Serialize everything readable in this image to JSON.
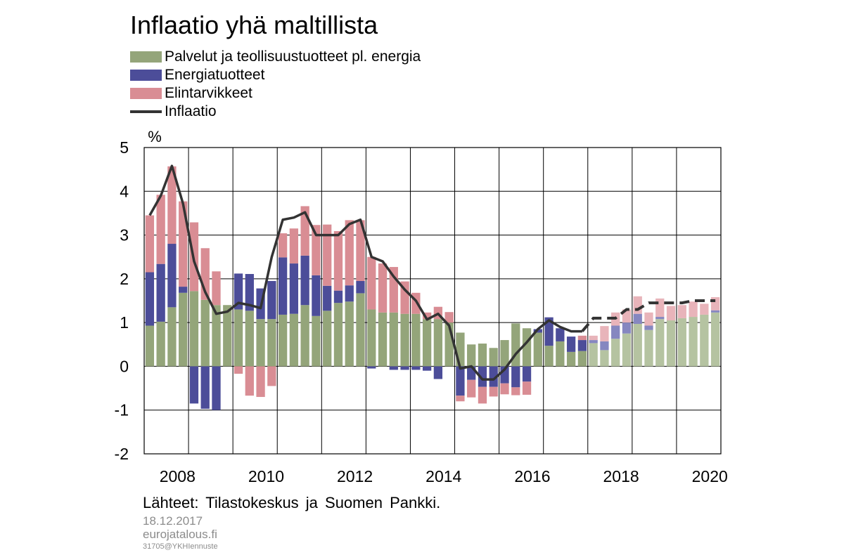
{
  "title": "Inflaatio yhä maltillista",
  "legend": [
    {
      "label": "Palvelut ja teollisuustuotteet pl. energia",
      "color": "#94a57a",
      "kind": "bar"
    },
    {
      "label": "Energiatuotteet",
      "color": "#4c4d99",
      "kind": "bar"
    },
    {
      "label": "Elintarvikkeet",
      "color": "#d98d94",
      "kind": "bar"
    },
    {
      "label": "Inflaatio",
      "color": "#333333",
      "kind": "line"
    }
  ],
  "source": "Lähteet: Tilastokeskus ja Suomen Pankki.",
  "date": "18.12.2017",
  "site": "eurojatalous.fi",
  "code": "31705@YKHIennuste",
  "chart_data": {
    "type": "bar",
    "stacked": true,
    "frequency": "quarterly",
    "x_start": "2007Q4",
    "ylabel": "%",
    "ylim": [
      -2,
      5
    ],
    "yticks": [
      5,
      4,
      3,
      2,
      1,
      0,
      -1,
      -2
    ],
    "xticks": [
      "2008",
      "2010",
      "2012",
      "2014",
      "2016",
      "2018",
      "2020"
    ],
    "grid": true,
    "forecast_start": "2017Q4",
    "colors": {
      "services": "#94a57a",
      "energy": "#4c4d99",
      "food": "#d98d94",
      "line": "#333333"
    },
    "forecast_colors": {
      "services": "#b5c3a1",
      "energy": "#8687c0",
      "food": "#e8b4ba"
    },
    "series": [
      {
        "name": "Palvelut ja teollisuustuotteet pl. energia",
        "key": "services",
        "values": [
          0.93,
          1.02,
          1.35,
          1.68,
          1.72,
          1.52,
          1.4,
          1.4,
          1.3,
          1.27,
          1.08,
          1.08,
          1.18,
          1.2,
          1.4,
          1.15,
          1.27,
          1.45,
          1.48,
          1.67,
          1.3,
          1.23,
          1.23,
          1.2,
          1.2,
          1.08,
          1.08,
          1.0,
          0.77,
          0.5,
          0.52,
          0.42,
          0.6,
          0.98,
          0.87,
          0.77,
          0.47,
          0.57,
          0.33,
          0.35,
          0.53,
          0.37,
          0.63,
          0.75,
          0.97,
          0.83,
          1.08,
          1.05,
          1.1,
          1.13,
          1.18,
          1.23
        ]
      },
      {
        "name": "Energiatuotteet",
        "key": "energy",
        "values": [
          1.22,
          1.32,
          1.45,
          0.14,
          -0.85,
          -0.97,
          -1.0,
          0.0,
          0.82,
          0.84,
          0.7,
          0.87,
          1.31,
          1.15,
          1.13,
          0.93,
          0.57,
          0.28,
          0.37,
          0.28,
          -0.05,
          0.0,
          -0.08,
          -0.08,
          -0.08,
          -0.1,
          -0.29,
          0.0,
          -0.67,
          -0.31,
          -0.47,
          -0.47,
          -0.39,
          -0.48,
          -0.35,
          0.08,
          0.65,
          0.3,
          0.35,
          0.25,
          0.07,
          0.2,
          0.3,
          0.25,
          0.23,
          0.1,
          0.05,
          0.0,
          0.0,
          0.0,
          0.0,
          0.05
        ]
      },
      {
        "name": "Elintarvikkeet",
        "key": "food",
        "values": [
          1.3,
          1.58,
          1.77,
          1.95,
          1.57,
          1.18,
          0.77,
          0.0,
          -0.17,
          -0.67,
          -0.7,
          -0.45,
          0.55,
          0.8,
          1.13,
          1.15,
          1.4,
          1.36,
          1.49,
          1.39,
          1.2,
          1.12,
          1.04,
          0.74,
          0.48,
          0.15,
          0.28,
          0.24,
          -0.13,
          -0.4,
          -0.38,
          -0.22,
          -0.25,
          -0.18,
          -0.3,
          0.0,
          0.0,
          0.0,
          0.0,
          0.1,
          0.1,
          0.35,
          0.3,
          0.3,
          0.4,
          0.3,
          0.42,
          0.33,
          0.3,
          0.35,
          0.25,
          0.3
        ]
      }
    ],
    "inflation": [
      3.45,
      3.9,
      4.58,
      3.72,
      2.4,
      1.7,
      1.2,
      1.25,
      1.45,
      1.4,
      1.33,
      2.5,
      3.35,
      3.4,
      3.52,
      3.0,
      3.0,
      3.0,
      3.25,
      3.35,
      2.5,
      2.4,
      2.05,
      1.75,
      1.5,
      1.07,
      1.2,
      0.93,
      -0.05,
      0.0,
      -0.3,
      -0.3,
      -0.07,
      0.28,
      0.55,
      0.85,
      1.05,
      0.9,
      0.8,
      0.8,
      1.1,
      1.1,
      1.1,
      1.3,
      1.3,
      1.45,
      1.45,
      1.45,
      1.45,
      1.5,
      1.5,
      1.5
    ]
  }
}
